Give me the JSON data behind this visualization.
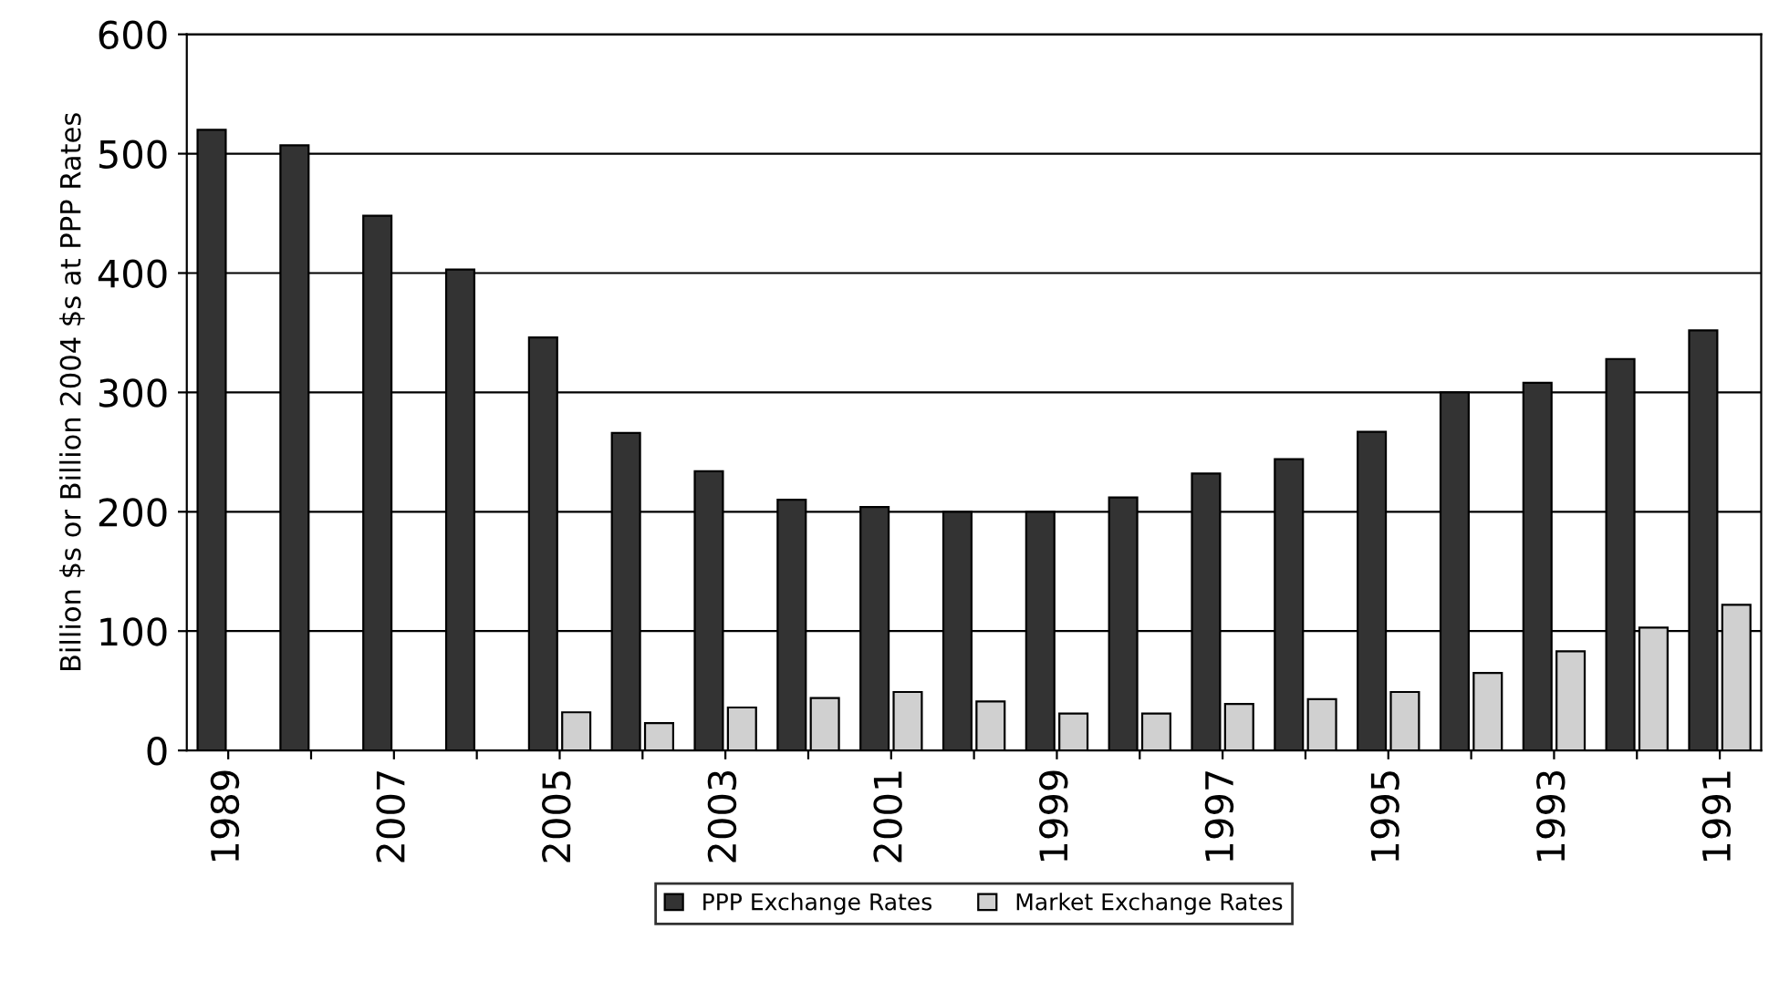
{
  "chart_data": {
    "type": "bar",
    "ylabel": "Billion $s or Billion 2004 $s at PPP Rates",
    "categories": [
      "1989",
      null,
      "2007",
      null,
      "2005",
      null,
      "2003",
      null,
      "2001",
      null,
      "1999",
      null,
      "1997",
      null,
      "1995",
      null,
      "1993",
      null,
      "1991"
    ],
    "series": [
      {
        "name": "PPP Exchange Rates",
        "color": "#333333",
        "values": [
          520,
          507,
          448,
          403,
          346,
          266,
          234,
          210,
          204,
          200,
          200,
          212,
          232,
          244,
          267,
          300,
          308,
          328,
          352
        ]
      },
      {
        "name": "Market Exchange Rates",
        "color": "#d0d0d0",
        "values": [
          null,
          null,
          null,
          null,
          32,
          23,
          36,
          44,
          49,
          41,
          31,
          31,
          39,
          43,
          49,
          65,
          83,
          103,
          122
        ]
      }
    ],
    "ylim": [
      0,
      600
    ],
    "yticks": [
      0,
      100,
      200,
      300,
      400,
      500,
      600
    ],
    "grid": "y",
    "legend": "bottom"
  }
}
